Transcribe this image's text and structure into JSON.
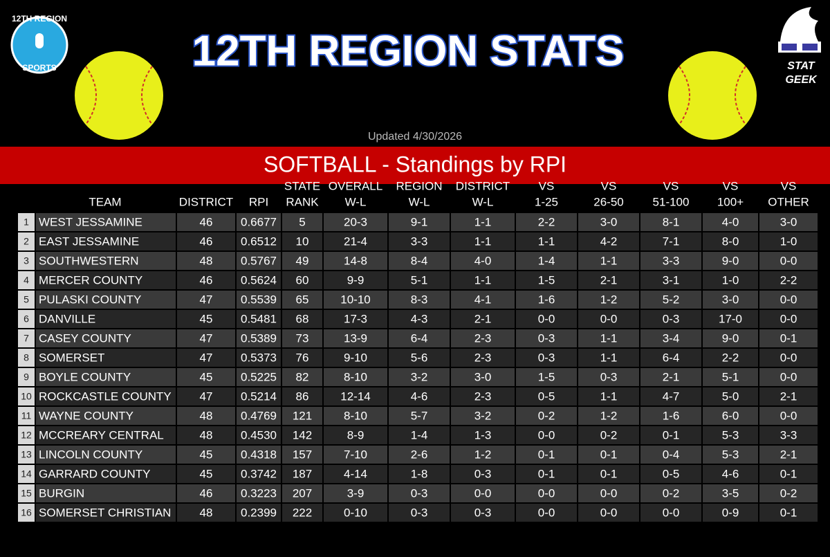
{
  "title": "12TH REGION STATS",
  "logos": {
    "left_top": "12TH REGION",
    "left_bottom": "SPORTS",
    "right_top": "STAT",
    "right_bottom": "GEEK"
  },
  "updated": "Updated 4/30/2026",
  "banner": "SOFTBALL - Standings by RPI",
  "table": {
    "header": [
      [
        "TEAM"
      ],
      [
        "DISTRICT"
      ],
      [
        "RPI"
      ],
      [
        "STATE",
        "RANK"
      ],
      [
        "OVERALL",
        "W-L"
      ],
      [
        "REGION",
        "W-L"
      ],
      [
        "DISTRICT",
        "W-L"
      ],
      [
        "VS",
        "1-25"
      ],
      [
        "VS",
        "26-50"
      ],
      [
        "VS",
        "51-100"
      ],
      [
        "VS",
        "100+"
      ],
      [
        "VS",
        "OTHER"
      ]
    ],
    "rows": [
      [
        "1",
        "WEST JESSAMINE",
        "46",
        "0.6677",
        "5",
        "20-3",
        "9-1",
        "1-1",
        "2-2",
        "3-0",
        "8-1",
        "4-0",
        "3-0"
      ],
      [
        "2",
        "EAST JESSAMINE",
        "46",
        "0.6512",
        "10",
        "21-4",
        "3-3",
        "1-1",
        "1-1",
        "4-2",
        "7-1",
        "8-0",
        "1-0"
      ],
      [
        "3",
        "SOUTHWESTERN",
        "48",
        "0.5767",
        "49",
        "14-8",
        "8-4",
        "4-0",
        "1-4",
        "1-1",
        "3-3",
        "9-0",
        "0-0"
      ],
      [
        "4",
        "MERCER COUNTY",
        "46",
        "0.5624",
        "60",
        "9-9",
        "5-1",
        "1-1",
        "1-5",
        "2-1",
        "3-1",
        "1-0",
        "2-2"
      ],
      [
        "5",
        "PULASKI COUNTY",
        "47",
        "0.5539",
        "65",
        "10-10",
        "8-3",
        "4-1",
        "1-6",
        "1-2",
        "5-2",
        "3-0",
        "0-0"
      ],
      [
        "6",
        "DANVILLE",
        "45",
        "0.5481",
        "68",
        "17-3",
        "4-3",
        "2-1",
        "0-0",
        "0-0",
        "0-3",
        "17-0",
        "0-0"
      ],
      [
        "7",
        "CASEY COUNTY",
        "47",
        "0.5389",
        "73",
        "13-9",
        "6-4",
        "2-3",
        "0-3",
        "1-1",
        "3-4",
        "9-0",
        "0-1"
      ],
      [
        "8",
        "SOMERSET",
        "47",
        "0.5373",
        "76",
        "9-10",
        "5-6",
        "2-3",
        "0-3",
        "1-1",
        "6-4",
        "2-2",
        "0-0"
      ],
      [
        "9",
        "BOYLE COUNTY",
        "45",
        "0.5225",
        "82",
        "8-10",
        "3-2",
        "3-0",
        "1-5",
        "0-3",
        "2-1",
        "5-1",
        "0-0"
      ],
      [
        "10",
        "ROCKCASTLE COUNTY",
        "47",
        "0.5214",
        "86",
        "12-14",
        "4-6",
        "2-3",
        "0-5",
        "1-1",
        "4-7",
        "5-0",
        "2-1"
      ],
      [
        "11",
        "WAYNE COUNTY",
        "48",
        "0.4769",
        "121",
        "8-10",
        "5-7",
        "3-2",
        "0-2",
        "1-2",
        "1-6",
        "6-0",
        "0-0"
      ],
      [
        "12",
        "MCCREARY CENTRAL",
        "48",
        "0.4530",
        "142",
        "8-9",
        "1-4",
        "1-3",
        "0-0",
        "0-2",
        "0-1",
        "5-3",
        "3-3"
      ],
      [
        "13",
        "LINCOLN COUNTY",
        "45",
        "0.4318",
        "157",
        "7-10",
        "2-6",
        "1-2",
        "0-1",
        "0-1",
        "0-4",
        "5-3",
        "2-1"
      ],
      [
        "14",
        "GARRARD COUNTY",
        "45",
        "0.3742",
        "187",
        "4-14",
        "1-8",
        "0-3",
        "0-1",
        "0-1",
        "0-5",
        "4-6",
        "0-1"
      ],
      [
        "15",
        "BURGIN",
        "46",
        "0.3223",
        "207",
        "3-9",
        "0-3",
        "0-0",
        "0-0",
        "0-0",
        "0-2",
        "3-5",
        "0-2"
      ],
      [
        "16",
        "SOMERSET CHRISTIAN",
        "48",
        "0.2399",
        "222",
        "0-10",
        "0-3",
        "0-3",
        "0-0",
        "0-0",
        "0-0",
        "0-9",
        "0-1"
      ]
    ]
  }
}
